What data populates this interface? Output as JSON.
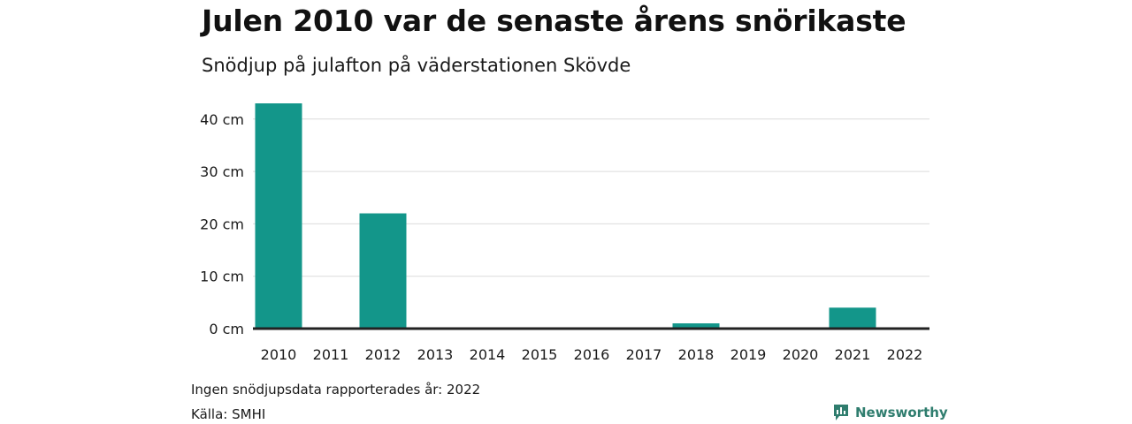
{
  "title": "Julen 2010 var de senaste årens snörikaste",
  "subtitle": "Snödjup på julafton på väderstationen Skövde",
  "note": "Ingen snödjupsdata rapporterades år: 2022",
  "source": "Källa: SMHI",
  "brand": {
    "name": "Newsworthy",
    "icon": "newsworthy-logo-icon"
  },
  "colors": {
    "bar": "#13968a",
    "grid": "#dcdcdc",
    "baseline": "#222222",
    "brand": "#2f7d6e"
  },
  "chart_data": {
    "type": "bar",
    "title": "Julen 2010 var de senaste årens snörikaste",
    "subtitle": "Snödjup på julafton på väderstationen Skövde",
    "xlabel": "",
    "ylabel": "",
    "categories": [
      "2010",
      "2011",
      "2012",
      "2013",
      "2014",
      "2015",
      "2016",
      "2017",
      "2018",
      "2019",
      "2020",
      "2021",
      "2022"
    ],
    "values": [
      43,
      0,
      22,
      0,
      0,
      0,
      0,
      0,
      1,
      0,
      0,
      4,
      null
    ],
    "ylim": [
      0,
      45
    ],
    "yticks": [
      0,
      10,
      20,
      30,
      40
    ],
    "ytick_labels": [
      "0 cm",
      "10 cm",
      "20 cm",
      "30 cm",
      "40 cm"
    ],
    "grid": true,
    "legend": "none"
  }
}
